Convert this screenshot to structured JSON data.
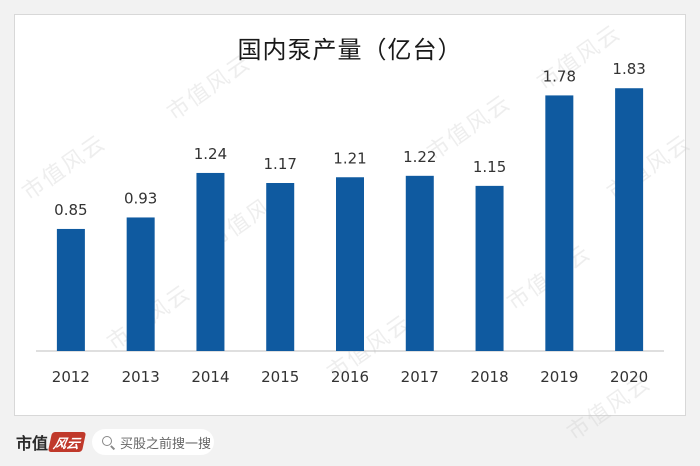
{
  "chart_data": {
    "type": "bar",
    "title": "国内泵产量（亿台）",
    "categories": [
      "2012",
      "2013",
      "2014",
      "2015",
      "2016",
      "2017",
      "2018",
      "2019",
      "2020"
    ],
    "values": [
      0.85,
      0.93,
      1.24,
      1.17,
      1.21,
      1.22,
      1.15,
      1.78,
      1.83
    ],
    "data_labels": [
      "0.85",
      "0.93",
      "1.24",
      "1.17",
      "1.21",
      "1.22",
      "1.15",
      "1.78",
      "1.83"
    ],
    "xlabel": "",
    "ylabel": "",
    "ylim": [
      0,
      1.95
    ],
    "grid": false,
    "legend": "none",
    "bar_color": "#0f5aa0"
  },
  "watermark": {
    "text": "市值风云"
  },
  "footer": {
    "brand_text": "市值",
    "brand_mark": "风云",
    "search_placeholder": "买股之前搜一搜",
    "search_icon": "search-icon"
  }
}
